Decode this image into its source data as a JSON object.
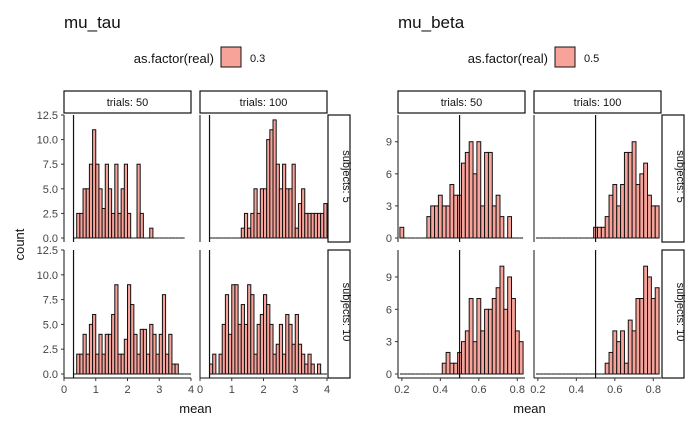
{
  "chart_data": [
    {
      "type": "bar",
      "title": "mu_tau",
      "xlabel": "mean",
      "ylabel": "count",
      "legend": {
        "title": "as.factor(real)",
        "entries": [
          "0.3"
        ],
        "color": "#f8a39a",
        "position": "top"
      },
      "facet_cols": [
        "trials: 50",
        "trials: 100"
      ],
      "facet_rows": [
        "subjects: 5",
        "subjects: 10"
      ],
      "xlim": [
        0,
        4
      ],
      "xticks": [
        "0",
        "1",
        "2",
        "3",
        "4"
      ],
      "ylim": [
        0,
        12.5
      ],
      "yticks": [
        "0.0",
        "2.5",
        "5.0",
        "7.5",
        "10.0",
        "12.5"
      ],
      "reference_line": 0.3,
      "bin_start": 0.3,
      "bin_width": 0.1,
      "panels": [
        {
          "row": 0,
          "col": 0,
          "counts": [
            0,
            2.5,
            2.5,
            5,
            5,
            7.5,
            11,
            7.5,
            5,
            3,
            7.5,
            5,
            2.5,
            7.5,
            2.5,
            5,
            7.5,
            2.5,
            0,
            0,
            7.5,
            2.5,
            0,
            0,
            1,
            0,
            0,
            0,
            0,
            0,
            0,
            0,
            0,
            0,
            0
          ]
        },
        {
          "row": 0,
          "col": 1,
          "counts": [
            0,
            0,
            0,
            0,
            0,
            0,
            0,
            0,
            0,
            0,
            1,
            2.5,
            1,
            2.5,
            5,
            2.5,
            5,
            5,
            10,
            11,
            12,
            7.5,
            5,
            7.5,
            5,
            5,
            7.5,
            1,
            3.5,
            5,
            2.5,
            2.5,
            2.5,
            2.5,
            2.5,
            2.5,
            3.5,
            2.5,
            2.5,
            2.5,
            1,
            2.5,
            2.5,
            1,
            1,
            1,
            0,
            1,
            0,
            0,
            0,
            1,
            0,
            1
          ]
        },
        {
          "row": 1,
          "col": 0,
          "counts": [
            0,
            2,
            2,
            4,
            2,
            5,
            6,
            2,
            4,
            2,
            4,
            4,
            6,
            9,
            2,
            2,
            3.5,
            9,
            7,
            4,
            2,
            4.5,
            4.5,
            2,
            5,
            4,
            2,
            4,
            8,
            2,
            4,
            1,
            1,
            0,
            0,
            0,
            0,
            0,
            0,
            0,
            0
          ]
        },
        {
          "row": 1,
          "col": 1,
          "counts": [
            1,
            2,
            0,
            2,
            5,
            8,
            4,
            9,
            9,
            5,
            7,
            5,
            9,
            8,
            2,
            5,
            6,
            8,
            7,
            5,
            2,
            3,
            5,
            2,
            6,
            5,
            3,
            6,
            3,
            2,
            1,
            2,
            1,
            0,
            1,
            0,
            0,
            0
          ]
        }
      ]
    },
    {
      "type": "bar",
      "title": "mu_beta",
      "xlabel": "mean",
      "ylabel": "",
      "legend": {
        "title": "as.factor(real)",
        "entries": [
          "0.5"
        ],
        "color": "#f8a39a",
        "position": "top"
      },
      "facet_cols": [
        "trials: 50",
        "trials: 100"
      ],
      "facet_rows": [
        "subjects: 5",
        "subjects: 10"
      ],
      "xlim": [
        0.18,
        0.84
      ],
      "xticks": [
        "0.2",
        "0.4",
        "0.6",
        "0.8"
      ],
      "ylim": [
        0,
        11
      ],
      "yticks": [
        "0",
        "3",
        "6",
        "9"
      ],
      "reference_line": 0.5,
      "bin_start": 0.19,
      "bin_width": 0.02,
      "panels": [
        {
          "row": 0,
          "col": 0,
          "counts": [
            1,
            0,
            0,
            0,
            0,
            0,
            0,
            2,
            3,
            3,
            4,
            3,
            3,
            5,
            4,
            4,
            7,
            8,
            9,
            6,
            9,
            3,
            8,
            8,
            3,
            4,
            2,
            0,
            2,
            0,
            0,
            0,
            0,
            0
          ]
        },
        {
          "row": 0,
          "col": 1,
          "counts": [
            0,
            0,
            0,
            0,
            0,
            0,
            0,
            0,
            0,
            0,
            0,
            0,
            0,
            0,
            0,
            1,
            1,
            1,
            2,
            4,
            5,
            3,
            5,
            8,
            8,
            9,
            5,
            6,
            7,
            4,
            3,
            3,
            2,
            2,
            1,
            0,
            0,
            0,
            0
          ]
        },
        {
          "row": 1,
          "col": 0,
          "counts": [
            0,
            0,
            0,
            0,
            0,
            0,
            0,
            0,
            0,
            0,
            0,
            1,
            2,
            1,
            1,
            2,
            3,
            4,
            7,
            3,
            7,
            4,
            6,
            6,
            7,
            8,
            10,
            6,
            9,
            7,
            4,
            3,
            4,
            1,
            1,
            0,
            1,
            0,
            0
          ]
        },
        {
          "row": 1,
          "col": 1,
          "counts": [
            0,
            0,
            0,
            0,
            0,
            0,
            0,
            0,
            0,
            0,
            0,
            0,
            0,
            0,
            0,
            0,
            0,
            0,
            1,
            2,
            4,
            3,
            4,
            1,
            5,
            4,
            7,
            7,
            10,
            9,
            7,
            8,
            5,
            4,
            1,
            2,
            1,
            0,
            1,
            0
          ]
        }
      ]
    }
  ]
}
